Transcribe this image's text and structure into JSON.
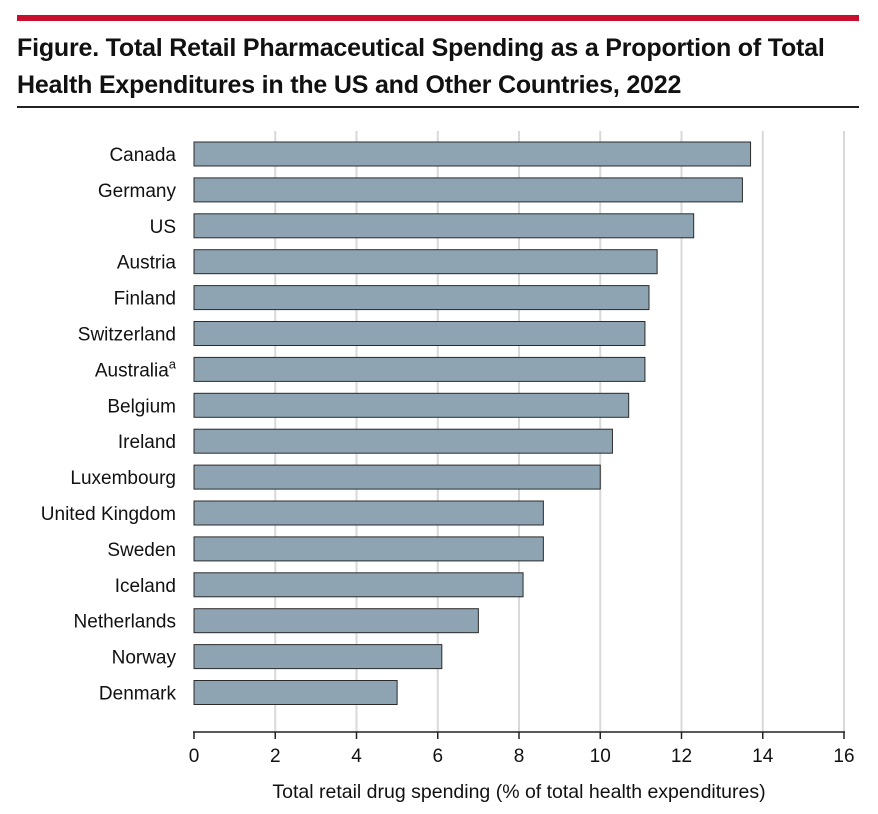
{
  "figure": {
    "title": "Figure. Total Retail Pharmaceutical Spending as a Proportion of Total Health Expenditures in the US and Other Countries, 2022"
  },
  "colors": {
    "accent_rule": "#c8102e",
    "bar_fill": "#8ea4b2",
    "bar_stroke": "#2b2b2b",
    "grid": "#d9d9d9"
  },
  "chart_data": {
    "type": "bar",
    "orientation": "horizontal",
    "title": "Figure. Total Retail Pharmaceutical Spending as a Proportion of Total Health Expenditures in the US and Other Countries, 2022",
    "categories": [
      "Canada",
      "Germany",
      "US",
      "Austria",
      "Finland",
      "Switzerland",
      "Australia",
      "Belgium",
      "Ireland",
      "Luxembourg",
      "United Kingdom",
      "Sweden",
      "Iceland",
      "Netherlands",
      "Norway",
      "Denmark"
    ],
    "superscripts": {
      "Australia": "a"
    },
    "values": [
      13.7,
      13.5,
      12.3,
      11.4,
      11.2,
      11.1,
      11.1,
      10.7,
      10.3,
      10.0,
      8.6,
      8.6,
      8.1,
      7.0,
      6.1,
      5.0
    ],
    "xlabel": "Total retail drug spending (% of total health expenditures)",
    "ylabel": "",
    "xlim": [
      0,
      16
    ],
    "xticks": [
      0,
      2,
      4,
      6,
      8,
      10,
      12,
      14,
      16
    ],
    "grid": "vertical"
  }
}
